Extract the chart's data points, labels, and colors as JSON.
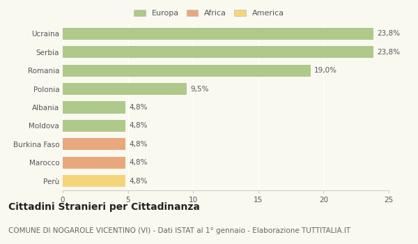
{
  "categories": [
    "Ucraina",
    "Serbia",
    "Romania",
    "Polonia",
    "Albania",
    "Moldova",
    "Burkina Faso",
    "Marocco",
    "Perù"
  ],
  "values": [
    23.8,
    23.8,
    19.0,
    9.5,
    4.8,
    4.8,
    4.8,
    4.8,
    4.8
  ],
  "labels": [
    "23,8%",
    "23,8%",
    "19,0%",
    "9,5%",
    "4,8%",
    "4,8%",
    "4,8%",
    "4,8%",
    "4,8%"
  ],
  "colors": [
    "#aec98a",
    "#aec98a",
    "#aec98a",
    "#aec98a",
    "#aec98a",
    "#aec98a",
    "#e8a87c",
    "#e8a87c",
    "#f5d57a"
  ],
  "legend": [
    {
      "label": "Europa",
      "color": "#aec98a"
    },
    {
      "label": "Africa",
      "color": "#e8a87c"
    },
    {
      "label": "America",
      "color": "#f5d57a"
    }
  ],
  "xlim": [
    0,
    25
  ],
  "xticks": [
    0,
    5,
    10,
    15,
    20,
    25
  ],
  "title": "Cittadini Stranieri per Cittadinanza",
  "subtitle": "COMUNE DI NOGAROLE VICENTINO (VI) - Dati ISTAT al 1° gennaio - Elaborazione TUTTITALIA.IT",
  "title_fontsize": 10,
  "subtitle_fontsize": 7.5,
  "label_fontsize": 7.5,
  "tick_fontsize": 7.5,
  "legend_fontsize": 8,
  "bg_color": "#f9f9f0",
  "bar_edge_color": "none",
  "grid_color": "#ffffff",
  "spine_color": "#cccccc"
}
